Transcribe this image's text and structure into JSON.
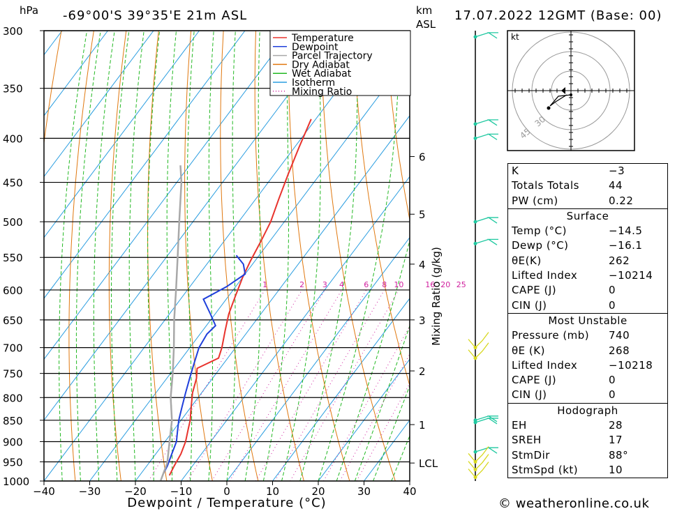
{
  "header": {
    "left_unit": "hPa",
    "location": "-69°00'S  39°35'E  21m  ASL",
    "right_unit_1": "km",
    "right_unit_2": "ASL",
    "datetime": "17.07.2022  12GMT  (Base: 00)"
  },
  "footer": {
    "copyright": "© weatheronline.co.uk"
  },
  "colors": {
    "temperature": "#e8332d",
    "dewpoint": "#1f3fdb",
    "parcel": "#a8a8a8",
    "dry_adiabat": "#e0780f",
    "wet_adiabat": "#22b822",
    "isotherm": "#2a9de0",
    "mixing_ratio": "#d01f9e",
    "wind_barb": "#1fc8a0",
    "wind_barb_low": "#d8d81f"
  },
  "chart_data": {
    "type": "line",
    "xlabel": "Dewpoint  /  Temperature  (°C)",
    "ylabel_left": "hPa",
    "ylabel_right": "Mixing Ratio  (g/kg)",
    "x_ticks": [
      "−40",
      "−30",
      "−20",
      "−10",
      "0",
      "10",
      "20",
      "30",
      "40"
    ],
    "x_range": [
      -40,
      40
    ],
    "pressure_levels": [
      "300",
      "350",
      "400",
      "450",
      "500",
      "550",
      "600",
      "650",
      "700",
      "750",
      "800",
      "850",
      "900",
      "950",
      "1000"
    ],
    "height_ticks": [
      {
        "label": "6",
        "p": 420
      },
      {
        "label": "5",
        "p": 490
      },
      {
        "label": "4",
        "p": 560
      },
      {
        "label": "3",
        "p": 650
      },
      {
        "label": "2",
        "p": 745
      },
      {
        "label": "1",
        "p": 860
      },
      {
        "label": "LCL",
        "p": 953
      }
    ],
    "mixing_ratio_labels": [
      "1",
      "2",
      "3",
      "4",
      "6",
      "8",
      "10",
      "16",
      "20",
      "25"
    ],
    "legend": [
      "Temperature",
      "Dewpoint",
      "Parcel Trajectory",
      "Dry Adiabat",
      "Wet Adiabat",
      "Isotherm",
      "Mixing Ratio"
    ],
    "series": [
      {
        "name": "Temperature",
        "points": [
          [
            -13.5,
            985
          ],
          [
            -14,
            960
          ],
          [
            -14.5,
            930
          ],
          [
            -15.5,
            900
          ],
          [
            -17,
            870
          ],
          [
            -18,
            850
          ],
          [
            -20,
            820
          ],
          [
            -22,
            790
          ],
          [
            -23.5,
            760
          ],
          [
            -25,
            740
          ],
          [
            -22,
            720
          ],
          [
            -23,
            700
          ],
          [
            -25,
            670
          ],
          [
            -27,
            640
          ],
          [
            -28.5,
            610
          ],
          [
            -30,
            580
          ],
          [
            -31,
            555
          ],
          [
            -32,
            525
          ],
          [
            -33,
            500
          ],
          [
            -35,
            470
          ],
          [
            -37,
            440
          ],
          [
            -39,
            410
          ],
          [
            -41,
            380
          ]
        ]
      },
      {
        "name": "Dewpoint",
        "points": [
          [
            -15,
            985
          ],
          [
            -15.5,
            960
          ],
          [
            -16.5,
            930
          ],
          [
            -17.5,
            900
          ],
          [
            -19,
            875
          ],
          [
            -20.5,
            850
          ],
          [
            -22,
            820
          ],
          [
            -23.5,
            790
          ],
          [
            -25,
            760
          ],
          [
            -26.5,
            730
          ],
          [
            -28,
            700
          ],
          [
            -28.5,
            675
          ],
          [
            -28,
            660
          ],
          [
            -31,
            640
          ],
          [
            -35,
            615
          ],
          [
            -32,
            595
          ],
          [
            -30,
            575
          ],
          [
            -32,
            560
          ],
          [
            -35,
            547
          ]
        ]
      },
      {
        "name": "Parcel Trajectory",
        "points": [
          [
            -14.5,
            1000
          ],
          [
            -16,
            953
          ],
          [
            -19,
            900
          ],
          [
            -22,
            850
          ],
          [
            -26,
            800
          ],
          [
            -29.5,
            750
          ],
          [
            -33.5,
            700
          ],
          [
            -38,
            650
          ],
          [
            -42.5,
            600
          ],
          [
            -47.5,
            550
          ],
          [
            -53,
            500
          ],
          [
            -59,
            450
          ],
          [
            -62,
            430
          ]
        ]
      }
    ],
    "wind_barbs": [
      {
        "p": 305,
        "color": "wind_barb"
      },
      {
        "p": 385,
        "color": "wind_barb"
      },
      {
        "p": 400,
        "color": "wind_barb"
      },
      {
        "p": 500,
        "color": "wind_barb"
      },
      {
        "p": 530,
        "color": "wind_barb"
      },
      {
        "p": 700,
        "color": "wind_barb_low"
      },
      {
        "p": 720,
        "color": "wind_barb_low"
      },
      {
        "p": 850,
        "color": "wind_barb"
      },
      {
        "p": 855,
        "color": "wind_barb"
      },
      {
        "p": 925,
        "color": "wind_barb"
      },
      {
        "p": 950,
        "color": "wind_barb_low"
      },
      {
        "p": 970,
        "color": "wind_barb_low"
      },
      {
        "p": 990,
        "color": "wind_barb_low"
      }
    ],
    "hodograph": {
      "unit": "kt",
      "ring_labels": [
        "30",
        "45"
      ]
    }
  },
  "indices": {
    "rows": [
      {
        "k": "K",
        "v": "−3"
      },
      {
        "k": "Totals Totals",
        "v": "44"
      },
      {
        "k": "PW (cm)",
        "v": "0.22"
      }
    ],
    "surface": {
      "title": "Surface",
      "rows": [
        {
          "k": "Temp (°C)",
          "v": "−14.5"
        },
        {
          "k": "Dewp (°C)",
          "v": "−16.1"
        },
        {
          "k": "θE(K)",
          "v": "262"
        },
        {
          "k": "Lifted Index",
          "v": "−10214"
        },
        {
          "k": "CAPE (J)",
          "v": "0"
        },
        {
          "k": "CIN (J)",
          "v": "0"
        }
      ]
    },
    "most_unstable": {
      "title": "Most Unstable",
      "rows": [
        {
          "k": "Pressure (mb)",
          "v": "740"
        },
        {
          "k": "θE (K)",
          "v": "268"
        },
        {
          "k": "Lifted Index",
          "v": "−10218"
        },
        {
          "k": "CAPE (J)",
          "v": "0"
        },
        {
          "k": "CIN (J)",
          "v": "0"
        }
      ]
    },
    "hodograph": {
      "title": "Hodograph",
      "rows": [
        {
          "k": "EH",
          "v": "28"
        },
        {
          "k": "SREH",
          "v": "17"
        },
        {
          "k": "StmDir",
          "v": "88°"
        },
        {
          "k": "StmSpd (kt)",
          "v": "10"
        }
      ]
    }
  }
}
